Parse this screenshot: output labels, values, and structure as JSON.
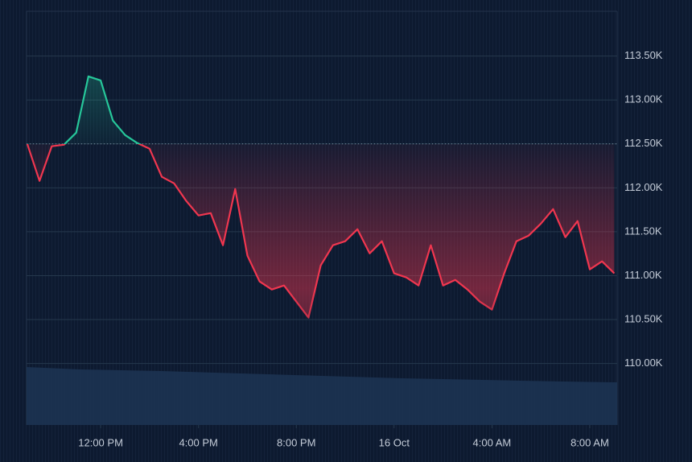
{
  "chart_data": {
    "type": "line",
    "x": [
      9,
      9.5,
      10,
      10.5,
      11,
      11.5,
      12,
      12.5,
      13,
      13.5,
      14,
      14.5,
      15,
      15.5,
      16,
      16.5,
      17,
      17.5,
      18,
      18.5,
      19,
      19.5,
      20,
      20.5,
      21,
      21.5,
      22,
      22.5,
      23,
      23.5,
      24,
      24.5,
      25,
      25.5,
      26,
      26.5,
      27,
      27.5,
      28,
      28.5,
      29,
      29.5,
      30,
      30.5,
      31,
      31.5,
      32,
      32.5,
      33
    ],
    "values": [
      112500,
      112079,
      112473,
      112491,
      112628,
      113269,
      113223,
      112766,
      112601,
      112509,
      112445,
      112125,
      112051,
      111850,
      111685,
      111712,
      111346,
      111987,
      111227,
      110934,
      110842,
      110888,
      110705,
      110522,
      111117,
      111346,
      111392,
      111529,
      111254,
      111392,
      111026,
      110980,
      110888,
      111346,
      110888,
      110952,
      110842,
      110705,
      110613,
      111026,
      111392,
      111456,
      111593,
      111758,
      111438,
      111621,
      111071,
      111163,
      111026
    ],
    "up_color": "#26c79a",
    "down_color": "#f0364f",
    "xlim": [
      8.97,
      33.12
    ],
    "ylim": [
      109300,
      114010
    ],
    "xticks": [
      {
        "value": 12,
        "label": "12:00 PM"
      },
      {
        "value": 16,
        "label": "4:00 PM"
      },
      {
        "value": 20,
        "label": "8:00 PM"
      },
      {
        "value": 24,
        "label": "16 Oct"
      },
      {
        "value": 28,
        "label": "4:00 AM"
      },
      {
        "value": 32,
        "label": "8:00 AM"
      }
    ],
    "yticks": [
      {
        "value": 110000,
        "label": "110.00K"
      },
      {
        "value": 110500,
        "label": "110.50K"
      },
      {
        "value": 111000,
        "label": "111.00K"
      },
      {
        "value": 111500,
        "label": "111.50K"
      },
      {
        "value": 112000,
        "label": "112.00K"
      },
      {
        "value": 112500,
        "label": "112.50K"
      },
      {
        "value": 113000,
        "label": "113.00K"
      },
      {
        "value": 113500,
        "label": "113.50K"
      }
    ],
    "grid": true
  }
}
